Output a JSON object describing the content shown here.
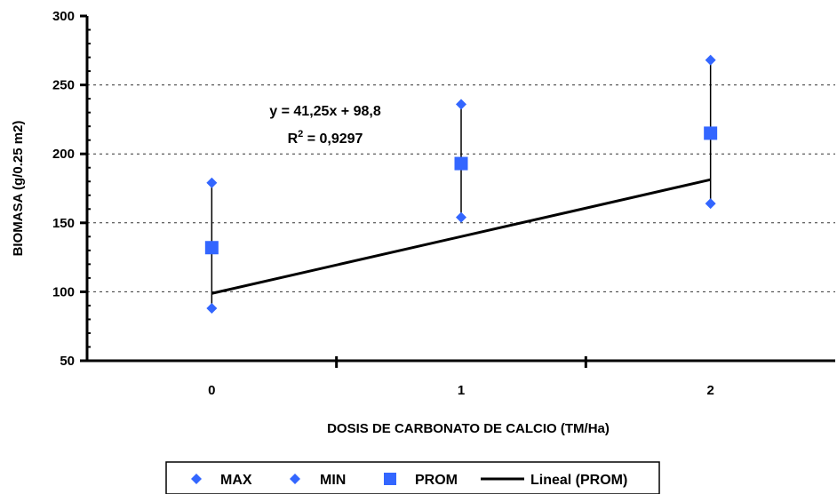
{
  "chart_data": {
    "type": "scatter",
    "title": "",
    "xlabel": "DOSIS DE CARBONATO DE CALCIO (TM/Ha)",
    "ylabel": "BIOMASA (g/0.25 m2)",
    "xlim": [
      -0.5,
      2.5
    ],
    "ylim": [
      50,
      300
    ],
    "x_ticks": [
      0,
      1,
      2
    ],
    "x_tick_labels": [
      "0",
      "1",
      "2"
    ],
    "y_ticks": [
      50,
      100,
      150,
      200,
      250,
      300
    ],
    "y_tick_labels": [
      "50",
      "100",
      "150",
      "200",
      "250",
      "300"
    ],
    "grid": "horizontal dashed",
    "legend_position": "bottom",
    "x": [
      0,
      1,
      2
    ],
    "series": [
      {
        "name": "MAX",
        "marker": "diamond",
        "color": "#3366ff",
        "values": [
          179,
          236,
          268
        ]
      },
      {
        "name": "MIN",
        "marker": "diamond",
        "color": "#3366ff",
        "values": [
          88,
          154,
          164
        ]
      },
      {
        "name": "PROM",
        "marker": "square",
        "color": "#3366ff",
        "values": [
          132,
          193,
          215
        ]
      },
      {
        "name": "Lineal (PROM)",
        "type": "line",
        "color": "#000000",
        "slope": 41.25,
        "intercept": 98.8
      }
    ],
    "annotations": {
      "equation": "y = 41,25x + 98,8",
      "r2_prefix": "R",
      "r2_sup": "2",
      "r2_value": " = 0,9297"
    }
  }
}
